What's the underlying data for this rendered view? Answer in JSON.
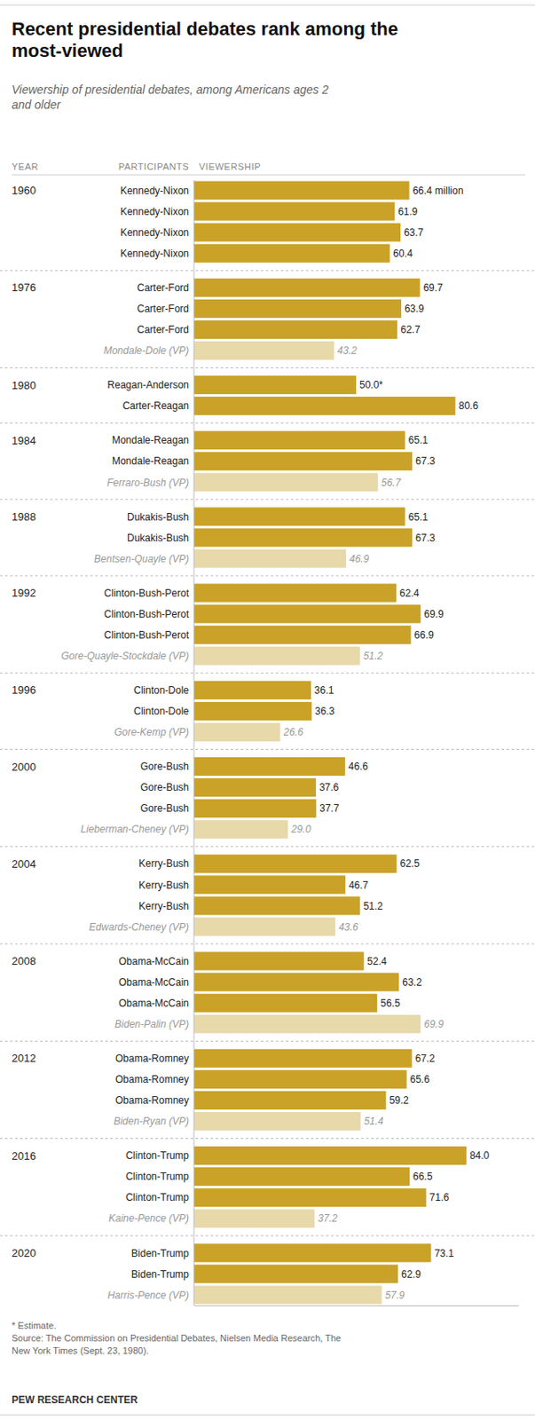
{
  "chart_data": {
    "type": "bar",
    "orientation": "horizontal",
    "title": "Recent presidential debates rank among the\nmost-viewed",
    "subtitle": "Viewership of presidential debates, among Americans ages 2\nand older",
    "column_headers": [
      "YEAR",
      "PARTICIPANTS",
      "VIEWERSHIP"
    ],
    "xlim": [
      0,
      100
    ],
    "tick_labels": false,
    "data_labels": true,
    "groups": [
      {
        "name": "1960",
        "categories": [
          "Kennedy-Nixon",
          "Kennedy-Nixon",
          "Kennedy-Nixon",
          "Kennedy-Nixon"
        ],
        "values": [
          66.4,
          61.9,
          63.7,
          60.4
        ],
        "value_labels": [
          "66.4 million",
          "61.9",
          "63.7",
          "60.4"
        ],
        "colors": [
          "#C9A227",
          "#C9A227",
          "#C9A227",
          "#C9A227"
        ]
      },
      {
        "name": "1976",
        "categories": [
          "Carter-Ford",
          "Carter-Ford",
          "Carter-Ford",
          "Mondale-Dole (VP)"
        ],
        "values": [
          69.7,
          63.9,
          62.7,
          43.2
        ],
        "value_labels": [
          "69.7",
          "63.9",
          "62.7",
          "43.2"
        ],
        "colors": [
          "#C9A227",
          "#C9A227",
          "#C9A227",
          "#E8D9AA"
        ]
      },
      {
        "name": "1980",
        "categories": [
          "Reagan-Anderson",
          "Carter-Reagan"
        ],
        "values": [
          50.0,
          80.6
        ],
        "value_labels": [
          "50.0*",
          "80.6"
        ],
        "colors": [
          "#C9A227",
          "#C9A227"
        ]
      },
      {
        "name": "1984",
        "categories": [
          "Mondale-Reagan",
          "Mondale-Reagan",
          "Ferraro-Bush (VP)"
        ],
        "values": [
          65.1,
          67.3,
          56.7
        ],
        "value_labels": [
          "65.1",
          "67.3",
          "56.7"
        ],
        "colors": [
          "#C9A227",
          "#C9A227",
          "#E8D9AA"
        ]
      },
      {
        "name": "1988",
        "categories": [
          "Dukakis-Bush",
          "Dukakis-Bush",
          "Bentsen-Quayle (VP)"
        ],
        "values": [
          65.1,
          67.3,
          46.9
        ],
        "value_labels": [
          "65.1",
          "67.3",
          "46.9"
        ],
        "colors": [
          "#C9A227",
          "#C9A227",
          "#E8D9AA"
        ]
      },
      {
        "name": "1992",
        "categories": [
          "Clinton-Bush-Perot",
          "Clinton-Bush-Perot",
          "Clinton-Bush-Perot",
          "Gore-Quayle-Stockdale (VP)"
        ],
        "values": [
          62.4,
          69.9,
          66.9,
          51.2
        ],
        "value_labels": [
          "62.4",
          "69.9",
          "66.9",
          "51.2"
        ],
        "colors": [
          "#C9A227",
          "#C9A227",
          "#C9A227",
          "#E8D9AA"
        ]
      },
      {
        "name": "1996",
        "categories": [
          "Clinton-Dole",
          "Clinton-Dole",
          "Gore-Kemp (VP)"
        ],
        "values": [
          36.1,
          36.3,
          26.6
        ],
        "value_labels": [
          "36.1",
          "36.3",
          "26.6"
        ],
        "colors": [
          "#C9A227",
          "#C9A227",
          "#E8D9AA"
        ]
      },
      {
        "name": "2000",
        "categories": [
          "Gore-Bush",
          "Gore-Bush",
          "Gore-Bush",
          "Lieberman-Cheney (VP)"
        ],
        "values": [
          46.6,
          37.6,
          37.7,
          29.0
        ],
        "value_labels": [
          "46.6",
          "37.6",
          "37.7",
          "29.0"
        ],
        "colors": [
          "#C9A227",
          "#C9A227",
          "#C9A227",
          "#E8D9AA"
        ]
      },
      {
        "name": "2004",
        "categories": [
          "Kerry-Bush",
          "Kerry-Bush",
          "Kerry-Bush",
          "Edwards-Cheney (VP)"
        ],
        "values": [
          62.5,
          46.7,
          51.2,
          43.6
        ],
        "value_labels": [
          "62.5",
          "46.7",
          "51.2",
          "43.6"
        ],
        "colors": [
          "#C9A227",
          "#C9A227",
          "#C9A227",
          "#E8D9AA"
        ]
      },
      {
        "name": "2008",
        "categories": [
          "Obama-McCain",
          "Obama-McCain",
          "Obama-McCain",
          "Biden-Palin (VP)"
        ],
        "values": [
          52.4,
          63.2,
          56.5,
          69.9
        ],
        "value_labels": [
          "52.4",
          "63.2",
          "56.5",
          "69.9"
        ],
        "colors": [
          "#C9A227",
          "#C9A227",
          "#C9A227",
          "#E8D9AA"
        ]
      },
      {
        "name": "2012",
        "categories": [
          "Obama-Romney",
          "Obama-Romney",
          "Obama-Romney",
          "Biden-Ryan (VP)"
        ],
        "values": [
          67.2,
          65.6,
          59.2,
          51.4
        ],
        "value_labels": [
          "67.2",
          "65.6",
          "59.2",
          "51.4"
        ],
        "colors": [
          "#C9A227",
          "#C9A227",
          "#C9A227",
          "#E8D9AA"
        ]
      },
      {
        "name": "2016",
        "categories": [
          "Clinton-Trump",
          "Clinton-Trump",
          "Clinton-Trump",
          "Kaine-Pence (VP)"
        ],
        "values": [
          84.0,
          66.5,
          71.6,
          37.2
        ],
        "value_labels": [
          "84.0",
          "66.5",
          "71.6",
          "37.2"
        ],
        "colors": [
          "#C9A227",
          "#C9A227",
          "#C9A227",
          "#E8D9AA"
        ]
      },
      {
        "name": "2020",
        "categories": [
          "Biden-Trump",
          "Biden-Trump",
          "Harris-Pence (VP)"
        ],
        "values": [
          73.1,
          62.9,
          57.9
        ],
        "value_labels": [
          "73.1",
          "62.9",
          "57.9"
        ],
        "colors": [
          "#C9A227",
          "#C9A227",
          "#E8D9AA"
        ]
      }
    ],
    "footnotes": [
      "* Estimate.",
      "Source: The Commission on Presidential Debates, Nielsen Media Research, The\nNew York Times (Sept. 23, 1980)."
    ],
    "credit": "PEW RESEARCH CENTER"
  }
}
